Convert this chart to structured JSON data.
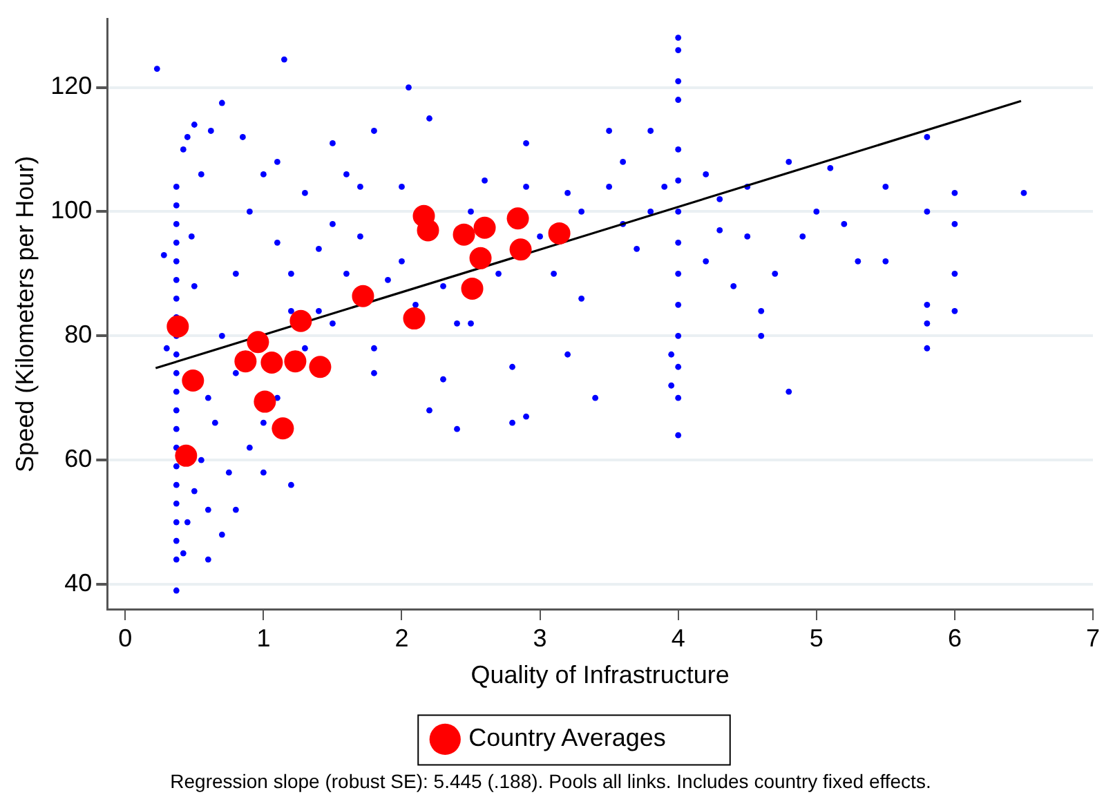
{
  "chart_data": {
    "type": "scatter",
    "xlabel": "Quality of Infrastructure",
    "ylabel": "Speed (Kilometers per Hour)",
    "annotations": [
      "Regression slope (robust SE): 5.445 (.188). Pools all links. Includes country fixed effects."
    ],
    "xlim": [
      -0.13,
      7
    ],
    "xticks": [
      0,
      1,
      2,
      3,
      4,
      5,
      6,
      7
    ],
    "ylim": [
      36,
      131
    ],
    "yticks": [
      40,
      60,
      80,
      100,
      120
    ],
    "grid": "y",
    "legend": "bottom",
    "marker": "circle",
    "series": [
      {
        "color": "#0000ff",
        "x": [
          0.37,
          0.37,
          0.37,
          0.37,
          0.37,
          0.37,
          0.37,
          0.37,
          0.37,
          0.37,
          0.37,
          0.37,
          0.37,
          0.37,
          0.37,
          0.37,
          0.37,
          0.37,
          0.37,
          0.37,
          0.37,
          0.37,
          0.42,
          0.45,
          0.5,
          0.55,
          0.48,
          0.5,
          0.6,
          0.55,
          0.5,
          0.45,
          0.6,
          0.42,
          0.23,
          0.28,
          0.3,
          1.15,
          2.05,
          0.7,
          0.62,
          0.85,
          1.1,
          1.3,
          1.5,
          1.8,
          2.2,
          2.9,
          3.5,
          3.8,
          4,
          4,
          4,
          4,
          4,
          4,
          4,
          4,
          4,
          4,
          4,
          4,
          4,
          4,
          3.95,
          3.95,
          4.5,
          4.8,
          5.1,
          5.5,
          5.8,
          5.8,
          6,
          6.5,
          5.8,
          5.8,
          6,
          6,
          6,
          5.2,
          5,
          5.3,
          5.5,
          5.8,
          4.8,
          4.6,
          4.6,
          4.3,
          4.3,
          4.4,
          3.8,
          3.6,
          3.5,
          3.4,
          3.2,
          3.1,
          3.3,
          2.9,
          2.8,
          2.8,
          2.5,
          2.4,
          2.3,
          2.4,
          2.2,
          2.1,
          1.9,
          1.8,
          1.8,
          1.6,
          1.5,
          1.4,
          1.2,
          1.2,
          1.1,
          1,
          1,
          1.2,
          0.9,
          0.8,
          0.7,
          0.6,
          0.9,
          1,
          1.6,
          2,
          2.5,
          2.6,
          2.9,
          3.2,
          3.6,
          3.7,
          3.9,
          4.2,
          4.2,
          4.5,
          4.7,
          4.9,
          3.3,
          3,
          2.7,
          2.3,
          2,
          1.7,
          1.4,
          1.1,
          0.8,
          0.7,
          0.8,
          0.65,
          0.75,
          1.3,
          1.5,
          1.7
        ],
        "values": [
          39,
          44,
          47,
          50,
          53,
          56,
          59,
          62,
          65,
          68,
          71,
          74,
          77,
          80,
          83,
          86,
          89,
          92,
          95,
          98,
          101,
          104,
          110,
          112,
          114,
          106,
          96,
          88,
          70,
          60,
          55,
          50,
          52,
          45,
          123,
          93,
          78,
          124.5,
          120,
          117.5,
          113,
          112,
          108,
          103,
          111,
          113,
          115,
          111,
          113,
          113,
          128,
          126,
          121,
          118,
          110,
          105,
          100,
          95,
          90,
          85,
          80,
          75,
          70,
          64,
          72,
          77,
          104,
          108,
          107,
          104,
          112,
          100,
          103,
          103,
          78,
          82,
          84,
          90,
          98,
          98,
          100,
          92,
          92,
          85,
          71,
          84,
          80,
          97,
          102,
          88,
          100,
          98,
          104,
          70,
          77,
          90,
          86,
          67,
          75,
          66,
          82,
          82,
          73,
          65,
          68,
          85,
          89,
          78,
          74,
          90,
          98,
          84,
          90,
          84,
          70,
          66,
          58,
          56,
          62,
          52,
          48,
          44,
          100,
          106,
          106,
          104,
          100,
          105,
          104,
          103,
          108,
          94,
          104,
          106,
          92,
          96,
          90,
          96,
          100,
          96,
          90,
          88,
          92,
          96,
          94,
          95,
          90,
          80,
          74,
          66,
          58,
          78,
          82,
          104
        ]
      },
      {
        "name": "Country Averages",
        "color": "#ff0000",
        "x": [
          0.38,
          0.49,
          0.44,
          0.96,
          0.87,
          1.06,
          1.23,
          1.41,
          1.01,
          1.14,
          1.27,
          1.72,
          2.09,
          2.16,
          2.19,
          2.45,
          2.6,
          2.57,
          2.51,
          2.84,
          2.86,
          3.14
        ],
        "values": [
          81.5,
          72.8,
          60.7,
          79,
          75.9,
          75.7,
          75.9,
          75,
          69.4,
          65.1,
          82.4,
          86.4,
          82.8,
          99.3,
          97,
          96.3,
          97.4,
          92.5,
          87.6,
          98.9,
          93.9,
          96.5
        ]
      },
      {
        "type": "line",
        "color": "#000000",
        "marker": "none",
        "x": [
          0.22,
          6.48
        ],
        "values": [
          74.8,
          117.8
        ]
      }
    ]
  }
}
